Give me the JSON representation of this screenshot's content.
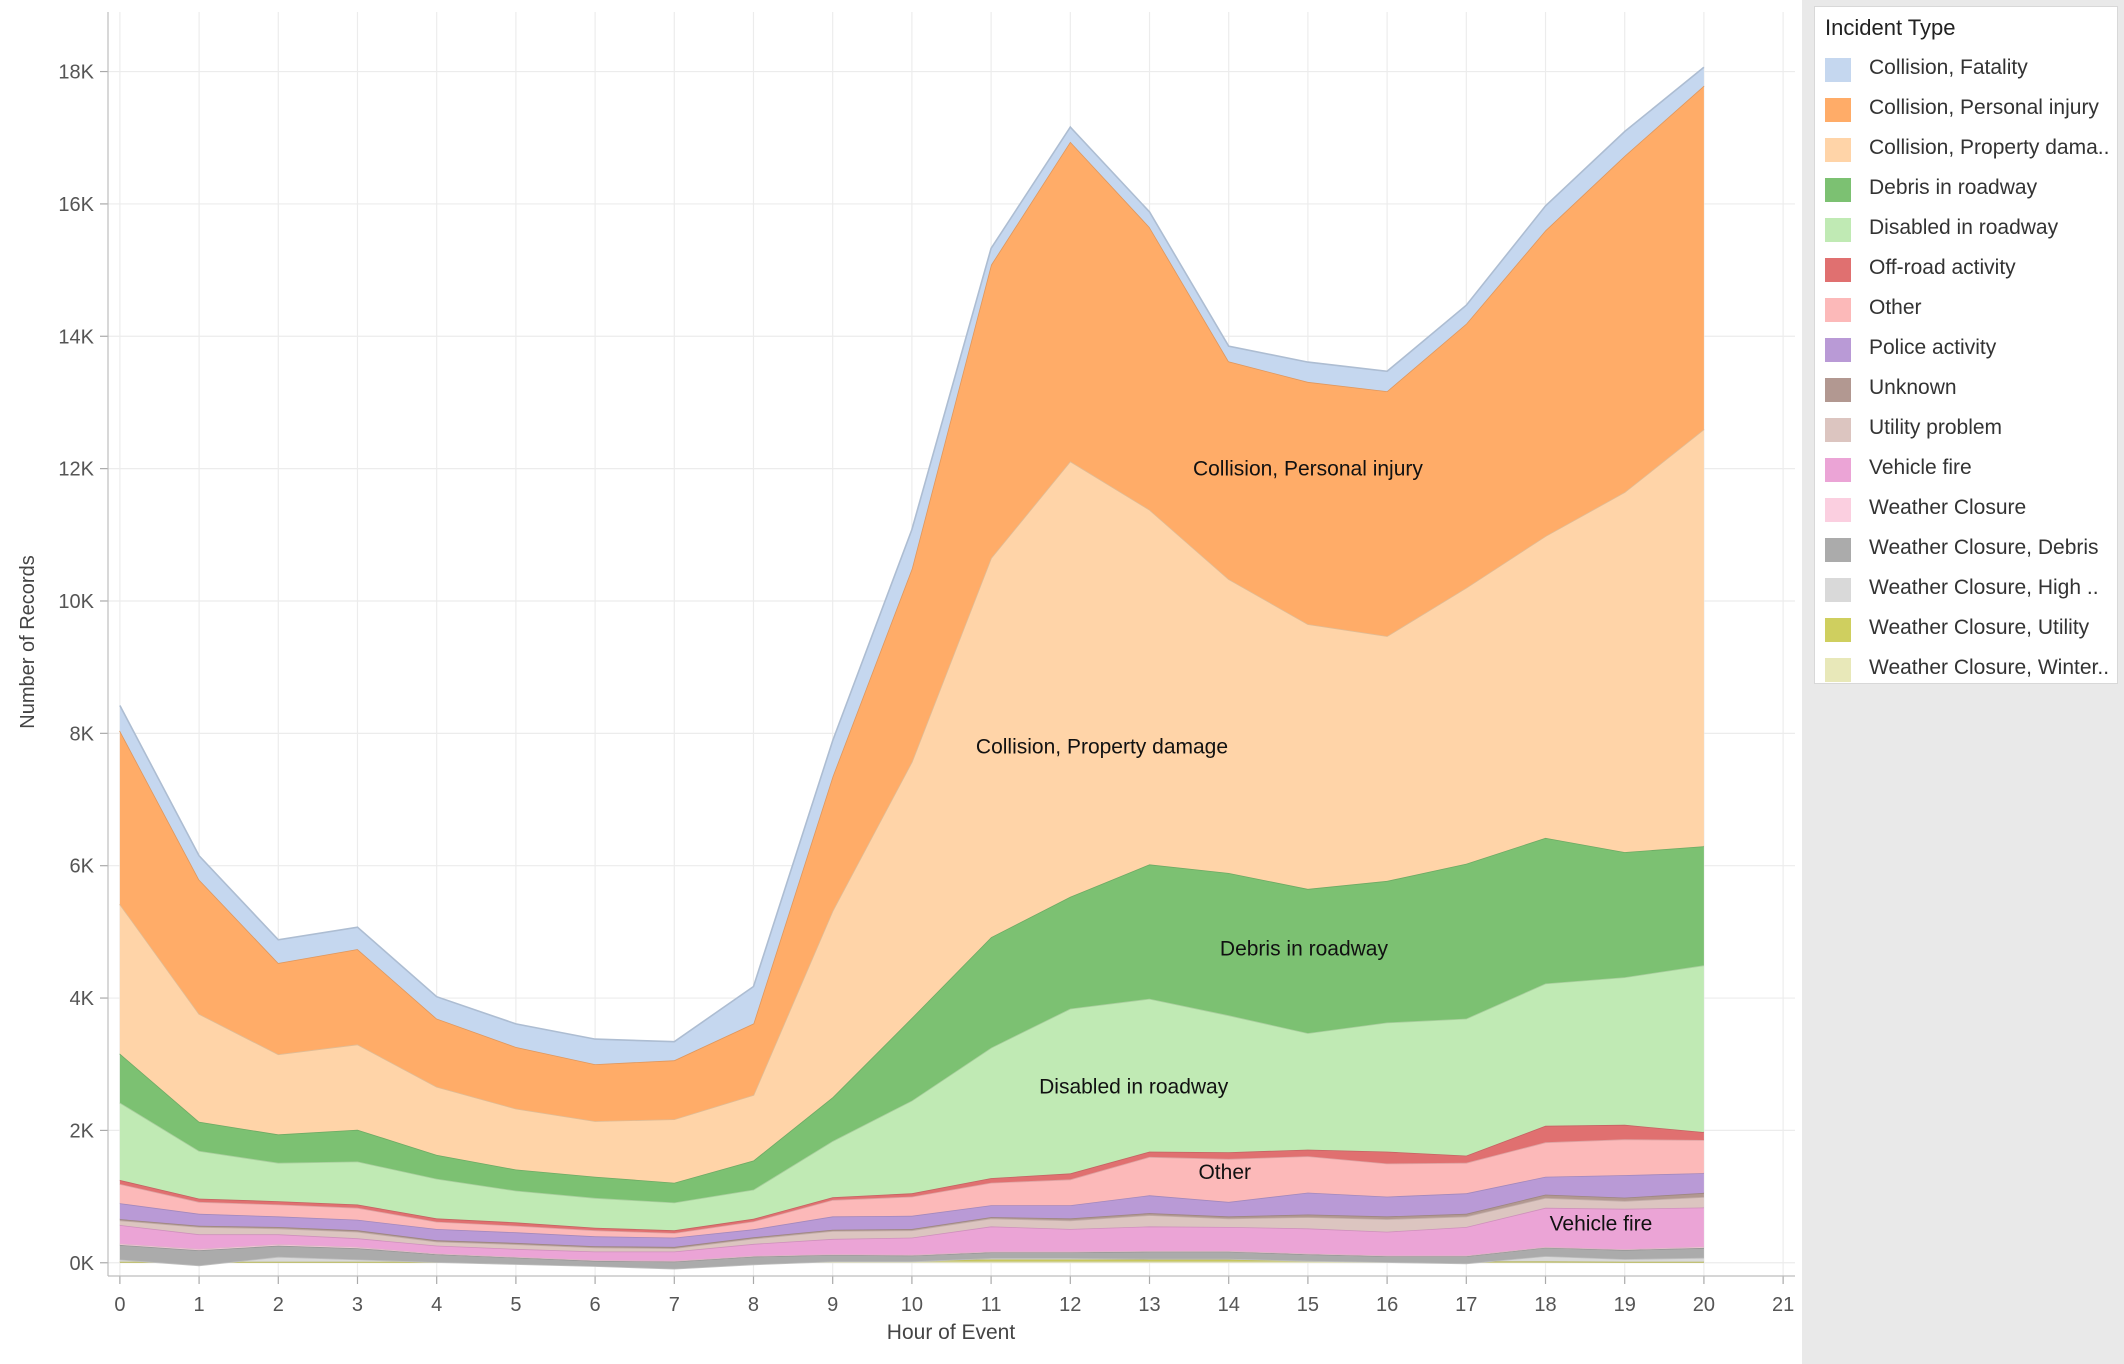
{
  "chart_data": {
    "type": "area",
    "stacked": true,
    "title": "",
    "xlabel": "Hour of Event",
    "ylabel": "Number of Records",
    "xlim": [
      -0.15,
      21.15
    ],
    "ylim": [
      -200,
      18900
    ],
    "x_ticks": [
      0,
      1,
      2,
      3,
      4,
      5,
      6,
      7,
      8,
      9,
      10,
      11,
      12,
      13,
      14,
      15,
      16,
      17,
      18,
      19,
      20,
      21
    ],
    "y_ticks": [
      {
        "value": 0,
        "label": "0K"
      },
      {
        "value": 2000,
        "label": "2K"
      },
      {
        "value": 4000,
        "label": "4K"
      },
      {
        "value": 6000,
        "label": "6K"
      },
      {
        "value": 8000,
        "label": "8K"
      },
      {
        "value": 10000,
        "label": "10K"
      },
      {
        "value": 12000,
        "label": "12K"
      },
      {
        "value": 14000,
        "label": "14K"
      },
      {
        "value": 16000,
        "label": "16K"
      },
      {
        "value": 18000,
        "label": "18K"
      }
    ],
    "grid": true,
    "x": [
      0,
      1,
      2,
      3,
      4,
      5,
      6,
      7,
      8,
      9,
      10,
      11,
      12,
      13,
      14,
      15,
      16,
      17,
      18,
      19,
      20
    ],
    "series": [
      {
        "name": "Weather Closure, Winter..",
        "color": "#e8e8b9",
        "values": [
          10,
          10,
          10,
          10,
          10,
          10,
          10,
          10,
          10,
          20,
          20,
          20,
          20,
          20,
          20,
          20,
          20,
          10,
          10,
          10,
          10
        ]
      },
      {
        "name": "Weather Closure, Utility",
        "color": "#cfcf5f",
        "values": [
          5,
          5,
          5,
          5,
          5,
          5,
          5,
          5,
          10,
          20,
          20,
          30,
          30,
          30,
          30,
          20,
          20,
          10,
          10,
          5,
          5
        ]
      },
      {
        "name": "Weather Closure, High ..",
        "color": "#d9d9d9",
        "values": [
          35,
          -55,
          75,
          35,
          -5,
          -35,
          -65,
          -105,
          -45,
          -20,
          -20,
          20,
          20,
          10,
          10,
          -10,
          -30,
          -30,
          80,
          40,
          60
        ]
      },
      {
        "name": "Weather Closure, Debris",
        "color": "#ababab",
        "values": [
          220,
          230,
          170,
          170,
          120,
          100,
          80,
          110,
          120,
          100,
          90,
          90,
          90,
          110,
          110,
          100,
          90,
          110,
          130,
          140,
          150
        ]
      },
      {
        "name": "Weather Closure",
        "color": "#fbcfe0",
        "values": [
          20,
          20,
          20,
          20,
          10,
          10,
          10,
          10,
          10,
          10,
          10,
          10,
          10,
          10,
          10,
          10,
          10,
          10,
          10,
          10,
          20
        ]
      },
      {
        "name": "Vehicle fire",
        "color": "#eba4d6",
        "values": [
          280,
          220,
          150,
          130,
          120,
          120,
          130,
          140,
          180,
          230,
          260,
          380,
          340,
          370,
          360,
          380,
          360,
          430,
          590,
          610,
          590
        ]
      },
      {
        "name": "Utility problem",
        "color": "#dcc5c0",
        "values": [
          70,
          110,
          90,
          100,
          60,
          70,
          60,
          50,
          80,
          120,
          110,
          120,
          130,
          170,
          130,
          170,
          190,
          160,
          150,
          120,
          160
        ]
      },
      {
        "name": "Unknown",
        "color": "#b29891",
        "values": [
          20,
          20,
          20,
          20,
          20,
          20,
          20,
          20,
          20,
          20,
          20,
          20,
          30,
          30,
          30,
          40,
          40,
          40,
          50,
          50,
          60
        ]
      },
      {
        "name": "Police activity",
        "color": "#b99ad6",
        "values": [
          240,
          180,
          160,
          160,
          170,
          160,
          150,
          140,
          120,
          200,
          200,
          180,
          200,
          270,
          220,
          330,
          300,
          310,
          270,
          340,
          300
        ]
      },
      {
        "name": "Other",
        "color": "#fcb9b9",
        "values": [
          290,
          180,
          180,
          180,
          110,
          100,
          90,
          70,
          120,
          250,
          290,
          340,
          390,
          580,
          650,
          550,
          500,
          460,
          520,
          540,
          500
        ]
      },
      {
        "name": "Off-road activity",
        "color": "#e07070",
        "values": [
          60,
          50,
          50,
          50,
          50,
          50,
          40,
          40,
          40,
          40,
          50,
          70,
          90,
          80,
          100,
          100,
          180,
          110,
          250,
          220,
          120
        ]
      },
      {
        "name": "Disabled in roadway",
        "color": "#c0eab4",
        "values": [
          1170,
          720,
          580,
          650,
          600,
          480,
          450,
          420,
          440,
          850,
          1400,
          1970,
          2490,
          2310,
          2070,
          1760,
          1950,
          2070,
          2150,
          2230,
          2520
        ]
      },
      {
        "name": "Debris in roadway",
        "color": "#7cc172",
        "values": [
          740,
          440,
          430,
          480,
          360,
          320,
          320,
          300,
          440,
          660,
          1250,
          1670,
          1690,
          2030,
          2150,
          2180,
          2140,
          2340,
          2200,
          1890,
          1800
        ]
      },
      {
        "name": "Collision, Property dama..",
        "color": "#ffd4a8",
        "values": [
          2260,
          1630,
          1210,
          1290,
          1030,
          920,
          840,
          960,
          990,
          2820,
          3870,
          5730,
          6580,
          5360,
          4440,
          4000,
          3700,
          4170,
          4560,
          5440,
          6300
        ]
      },
      {
        "name": "Collision, Personal injury",
        "color": "#ffac68",
        "values": [
          2620,
          2030,
          1380,
          1440,
          1030,
          930,
          860,
          890,
          1080,
          2030,
          2920,
          4430,
          4830,
          4270,
          3290,
          3660,
          3700,
          3990,
          4620,
          5080,
          5190
        ]
      },
      {
        "name": "Collision, Fatality",
        "color": "#c5d7ef",
        "values": [
          380,
          360,
          350,
          330,
          330,
          350,
          380,
          280,
          560,
          540,
          590,
          250,
          220,
          230,
          230,
          300,
          300,
          280,
          370,
          370,
          280
        ]
      }
    ],
    "annotations": [
      {
        "text": "Collision, Personal injury",
        "x": 15.0,
        "y": 12000
      },
      {
        "text": "Collision, Property damage",
        "x": 12.4,
        "y": 7800
      },
      {
        "text": "Debris in roadway",
        "x": 14.95,
        "y": 4750
      },
      {
        "text": "Disabled in roadway",
        "x": 12.8,
        "y": 2660
      },
      {
        "text": "Other",
        "x": 13.95,
        "y": 1370
      },
      {
        "text": "Vehicle fire",
        "x": 18.7,
        "y": 590
      }
    ]
  },
  "legend": {
    "title": "Incident Type",
    "items": [
      {
        "label": "Collision, Fatality",
        "color": "#c5d7ef"
      },
      {
        "label": "Collision, Personal injury",
        "color": "#ffac68"
      },
      {
        "label": "Collision, Property dama..",
        "color": "#ffd4a8"
      },
      {
        "label": "Debris in roadway",
        "color": "#7cc172"
      },
      {
        "label": "Disabled in roadway",
        "color": "#c0eab4"
      },
      {
        "label": "Off-road activity",
        "color": "#e07070"
      },
      {
        "label": "Other",
        "color": "#fcb9b9"
      },
      {
        "label": "Police activity",
        "color": "#b99ad6"
      },
      {
        "label": "Unknown",
        "color": "#b29891"
      },
      {
        "label": "Utility problem",
        "color": "#dcc5c0"
      },
      {
        "label": "Vehicle fire",
        "color": "#eba4d6"
      },
      {
        "label": "Weather Closure",
        "color": "#fbcfe0"
      },
      {
        "label": "Weather Closure, Debris",
        "color": "#ababab"
      },
      {
        "label": "Weather Closure, High ..",
        "color": "#d9d9d9"
      },
      {
        "label": "Weather Closure, Utility",
        "color": "#cfcf5f"
      },
      {
        "label": "Weather Closure, Winter..",
        "color": "#e8e8b9"
      }
    ]
  }
}
